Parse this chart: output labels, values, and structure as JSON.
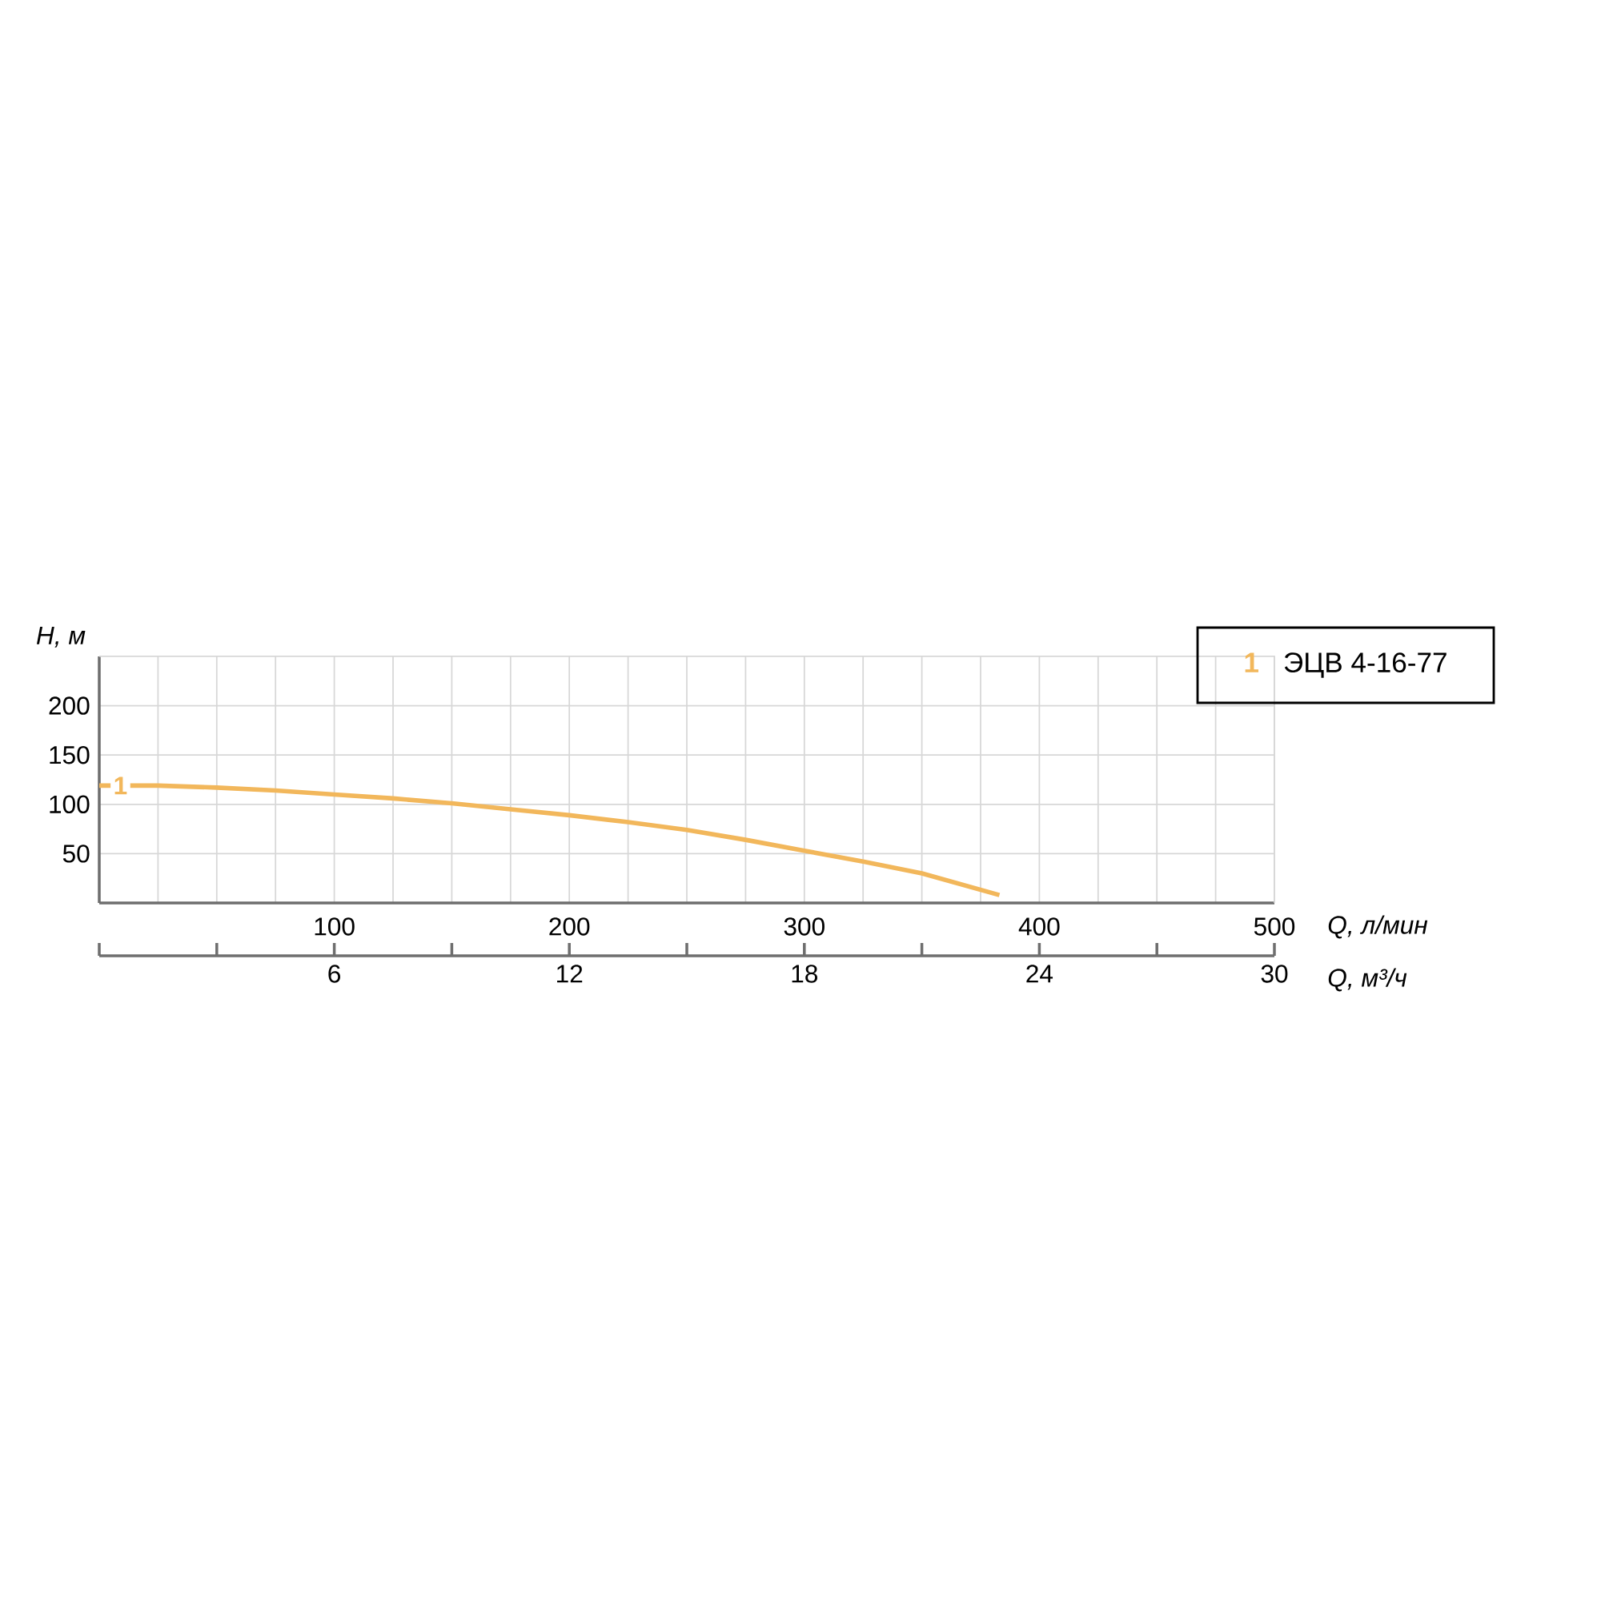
{
  "chart_data": {
    "type": "line",
    "xlabel": "Q, л/мин",
    "ylabel": "H, м",
    "x2label": "Q, м³/ч",
    "xlim": [
      0,
      500
    ],
    "ylim": [
      0,
      250
    ],
    "x2lim": [
      0,
      30
    ],
    "xticks": [
      {
        "value": 25,
        "label": null
      },
      {
        "value": 50,
        "label": null
      },
      {
        "value": 75,
        "label": null
      },
      100,
      {
        "value": 125,
        "label": null
      },
      {
        "value": 150,
        "label": null
      },
      {
        "value": 175,
        "label": null
      },
      200,
      {
        "value": 225,
        "label": null
      },
      {
        "value": 250,
        "label": null
      },
      {
        "value": 275,
        "label": null
      },
      300,
      {
        "value": 325,
        "label": null
      },
      {
        "value": 350,
        "label": null
      },
      {
        "value": 375,
        "label": null
      },
      400,
      {
        "value": 425,
        "label": null
      },
      {
        "value": 450,
        "label": null
      },
      {
        "value": 475,
        "label": null
      },
      500
    ],
    "yticks": [
      50,
      100,
      150,
      200
    ],
    "x2ticks": [
      {
        "value": 0,
        "label": null
      },
      {
        "value": 3,
        "label": null
      },
      6,
      {
        "value": 9,
        "label": null
      },
      12,
      {
        "value": 15,
        "label": null
      },
      18,
      {
        "value": 21,
        "label": null
      },
      24,
      {
        "value": 27,
        "label": null
      },
      30
    ],
    "grid": true,
    "legend": "top right",
    "annotations": [
      {
        "text": "1",
        "x": 9,
        "y": 119
      }
    ],
    "series": [
      {
        "name": "ЭЦВ 4-16-77",
        "color": "#f2b75b",
        "x": [
          0,
          25,
          50,
          75,
          100,
          125,
          150,
          175,
          200,
          225,
          250,
          275,
          300,
          325,
          350,
          383
        ],
        "values": [
          119,
          119,
          117,
          114,
          110,
          106,
          101,
          95,
          89,
          82,
          74,
          64,
          53,
          42,
          30,
          8
        ]
      }
    ]
  }
}
